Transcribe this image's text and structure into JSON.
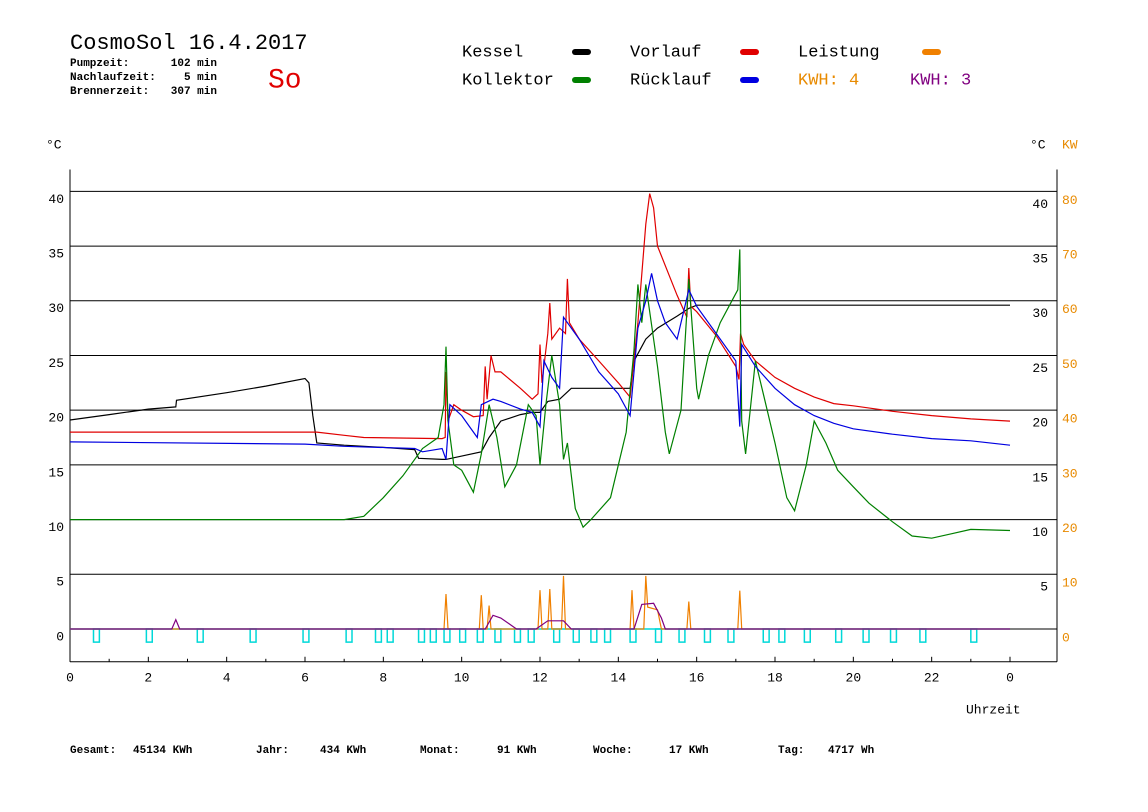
{
  "header": {
    "title": "CosmoSol 16.4.2017",
    "day": "So",
    "info": [
      {
        "label": "Pumpzeit:",
        "value": "102 min"
      },
      {
        "label": "Nachlaufzeit:",
        "value": "5 min"
      },
      {
        "label": "Brennerzeit:",
        "value": "307 min"
      }
    ]
  },
  "chart_data": {
    "type": "line",
    "x_label": "Uhrzeit",
    "y_label": "°C",
    "y_right_label": "°C",
    "y2_label": "KW",
    "xlim": [
      0,
      25.2
    ],
    "xticks": [
      0,
      2,
      4,
      6,
      8,
      10,
      12,
      14,
      16,
      18,
      20,
      22,
      {
        "value": 24,
        "label": "0"
      }
    ],
    "xminor_ticks": [
      1,
      3,
      5,
      7,
      9,
      11,
      13,
      15,
      17,
      19,
      21,
      23
    ],
    "ylim": [
      -3,
      42
    ],
    "yticks": [
      0,
      5,
      10,
      15,
      20,
      25,
      30,
      35,
      40
    ],
    "yticks_right": [
      5,
      10,
      15,
      20,
      25,
      30,
      35,
      40
    ],
    "y2lim": [
      -6,
      84
    ],
    "y2ticks": [
      0,
      10,
      20,
      30,
      40,
      50,
      60,
      70,
      80
    ],
    "y2_color": "#e88a00",
    "grid": true,
    "series": [
      {
        "name": "Kessel",
        "color": "#000000",
        "legend": "swatch",
        "x": [
          0,
          1,
          2,
          2.7,
          2.72,
          4,
          5,
          6,
          6.1,
          6.2,
          6.3,
          7,
          8,
          8.8,
          8.9,
          9.5,
          9.6,
          10,
          10.5,
          10.7,
          11,
          11.5,
          11.8,
          12,
          12.2,
          12.5,
          12.8,
          13.5,
          14.3,
          14.4,
          14.7,
          15,
          15.5,
          15.8,
          16,
          24
        ],
        "values": [
          19.1,
          19.6,
          20.1,
          20.3,
          20.9,
          21.6,
          22.2,
          22.9,
          22.5,
          19.5,
          17.0,
          16.8,
          16.6,
          16.4,
          15.6,
          15.5,
          15.5,
          15.8,
          16.2,
          17.5,
          19.0,
          19.6,
          19.8,
          19.8,
          20.8,
          21.0,
          22.0,
          22.0,
          22.0,
          24.5,
          26.5,
          27.5,
          28.6,
          29.3,
          29.6,
          29.6
        ]
      },
      {
        "name": "Vorlauf",
        "color": "#e00000",
        "legend": "swatch",
        "x": [
          0,
          6,
          6.3,
          7,
          7.5,
          9.5,
          9.58,
          9.6,
          9.65,
          9.8,
          10.0,
          10.3,
          10.55,
          10.6,
          10.65,
          10.75,
          10.85,
          11.0,
          11.5,
          11.8,
          11.95,
          12.0,
          12.05,
          12.2,
          12.25,
          12.3,
          12.5,
          12.65,
          12.7,
          12.75,
          13.0,
          13.5,
          14.0,
          14.3,
          14.5,
          14.7,
          14.8,
          14.9,
          15.0,
          15.5,
          15.75,
          15.8,
          15.85,
          16.0,
          16.5,
          17.0,
          17.08,
          17.12,
          17.2,
          17.5,
          18.0,
          18.5,
          19.0,
          19.5,
          20.0,
          21.0,
          22.0,
          23.0,
          24.0
        ],
        "values": [
          18.0,
          18.0,
          18.0,
          17.7,
          17.5,
          17.4,
          17.5,
          23.5,
          19.0,
          20.5,
          20.0,
          19.4,
          19.5,
          24.0,
          21.0,
          25.0,
          23.5,
          23.5,
          22.0,
          21.0,
          21.5,
          26.0,
          22.5,
          27.0,
          29.8,
          26.5,
          27.5,
          27.0,
          32.0,
          28.0,
          26.5,
          24.5,
          22.5,
          21.2,
          28.0,
          37.0,
          39.8,
          38.5,
          35.0,
          30.5,
          28.5,
          33.0,
          29.5,
          29.0,
          26.8,
          24.0,
          22.8,
          27.0,
          26.0,
          24.5,
          23.0,
          22.0,
          21.2,
          20.6,
          20.4,
          19.9,
          19.5,
          19.2,
          19.0
        ]
      },
      {
        "name": "Leistung",
        "color": "#f08000",
        "legend": "swatch",
        "axis": "y2",
        "x": [
          0,
          9.55,
          9.6,
          9.65,
          10.45,
          10.5,
          10.55,
          10.65,
          10.7,
          10.75,
          11.95,
          12.0,
          12.05,
          12.2,
          12.25,
          12.3,
          12.55,
          12.6,
          12.65,
          14.3,
          14.35,
          14.4,
          14.65,
          14.7,
          14.75,
          15.0,
          15.1,
          15.75,
          15.8,
          15.85,
          17.05,
          17.1,
          17.15,
          24
        ],
        "values": [
          0,
          0,
          6.4,
          0,
          0,
          6.2,
          0,
          0,
          4.3,
          0,
          0,
          7.1,
          0,
          0,
          7.3,
          0,
          0,
          9.7,
          0,
          0,
          7.1,
          0,
          0,
          9.7,
          4.0,
          3.5,
          0,
          0,
          5.0,
          0,
          0,
          7.0,
          0,
          0
        ]
      },
      {
        "name": "Kollektor",
        "color": "#008000",
        "legend": "swatch",
        "x": [
          0,
          7.0,
          7.5,
          8.0,
          8.5,
          9.0,
          9.4,
          9.55,
          9.6,
          9.65,
          9.8,
          10.0,
          10.3,
          10.5,
          10.7,
          10.9,
          11.1,
          11.4,
          11.7,
          11.9,
          12.0,
          12.15,
          12.3,
          12.5,
          12.6,
          12.7,
          12.9,
          13.1,
          13.3,
          13.8,
          14.2,
          14.4,
          14.5,
          14.6,
          14.7,
          14.8,
          15.0,
          15.2,
          15.3,
          15.6,
          15.8,
          16.0,
          16.05,
          16.3,
          16.6,
          16.9,
          17.05,
          17.1,
          17.15,
          17.25,
          17.5,
          17.7,
          18.0,
          18.3,
          18.5,
          18.8,
          19.0,
          19.3,
          19.6,
          20.0,
          20.4,
          21.0,
          21.5,
          22.0,
          22.5,
          23.0,
          24.0
        ],
        "values": [
          10.0,
          10.0,
          10.3,
          12.0,
          14.0,
          16.5,
          17.5,
          20.5,
          25.8,
          19.0,
          15.0,
          14.5,
          12.5,
          16.0,
          20.5,
          17.5,
          13.0,
          15.0,
          20.5,
          19.5,
          15.0,
          20.5,
          25.0,
          20.5,
          15.5,
          17.0,
          11.0,
          9.3,
          10.0,
          12.0,
          18.0,
          25.5,
          31.5,
          28.0,
          31.5,
          29.0,
          24.0,
          18.0,
          16.0,
          20.0,
          32.0,
          22.0,
          21.0,
          25.0,
          28.0,
          30.0,
          31.0,
          34.7,
          19.0,
          16.0,
          24.5,
          21.5,
          17.0,
          12.0,
          10.8,
          15.0,
          19.0,
          17.0,
          14.5,
          13.0,
          11.5,
          9.8,
          8.5,
          8.3,
          8.7,
          9.1,
          9.0
        ]
      },
      {
        "name": "Rücklauf",
        "color": "#0000e0",
        "legend": "swatch",
        "x": [
          0,
          6,
          7,
          8.8,
          9.0,
          9.5,
          9.6,
          9.7,
          10.0,
          10.2,
          10.4,
          10.5,
          10.8,
          11.0,
          11.5,
          11.8,
          12.0,
          12.1,
          12.3,
          12.5,
          12.6,
          13.0,
          13.5,
          14.0,
          14.3,
          14.5,
          14.7,
          14.85,
          15.0,
          15.2,
          15.5,
          15.8,
          16.0,
          16.5,
          17.0,
          17.1,
          17.15,
          17.5,
          18.0,
          18.5,
          19.0,
          19.5,
          20.0,
          21.0,
          22.0,
          23.0,
          24.0
        ],
        "values": [
          17.1,
          16.9,
          16.7,
          16.5,
          16.2,
          16.5,
          15.5,
          20.5,
          19.5,
          18.5,
          17.5,
          20.5,
          21.0,
          20.8,
          20.1,
          19.8,
          18.5,
          24.5,
          23.0,
          22.0,
          28.5,
          26.5,
          23.5,
          21.5,
          19.5,
          27.5,
          30.0,
          32.5,
          30.0,
          28.0,
          26.5,
          31.0,
          29.5,
          27.0,
          24.5,
          18.5,
          26.0,
          24.0,
          22.0,
          20.5,
          19.5,
          18.8,
          18.3,
          17.8,
          17.4,
          17.2,
          16.8
        ]
      },
      {
        "name": "KWH: 3",
        "color": "#800080",
        "legend": "text",
        "axis": "y2",
        "x": [
          0,
          2.6,
          2.7,
          2.8,
          10.6,
          10.8,
          11.0,
          11.2,
          11.4,
          11.9,
          12.2,
          12.6,
          12.8,
          14.4,
          14.6,
          14.9,
          15.1,
          15.2,
          24
        ],
        "values": [
          0,
          0,
          1.7,
          0,
          0,
          2.5,
          2.0,
          1.0,
          0,
          0,
          1.5,
          1.5,
          0,
          0,
          4.5,
          4.7,
          2.0,
          0,
          0
        ]
      }
    ],
    "extra_legend": [
      {
        "text": "KWH: 4",
        "color": "#e88a00"
      }
    ],
    "pump": {
      "color": "#00d8d8",
      "low": -1.2,
      "width": 0.15,
      "starts": [
        0.6,
        1.95,
        3.25,
        4.6,
        5.95,
        7.05,
        7.8,
        8.1,
        8.9,
        9.2,
        9.55,
        9.95,
        10.4,
        10.85,
        11.35,
        11.7,
        12.35,
        12.85,
        13.3,
        13.65,
        14.3,
        14.95,
        15.55,
        16.2,
        16.8,
        17.7,
        18.1,
        18.75,
        19.55,
        20.25,
        20.95,
        21.7,
        23.0
      ]
    }
  },
  "footer": [
    {
      "label": "Gesamt:",
      "value": "45134 KWh"
    },
    {
      "label": "Jahr:",
      "value": "434 KWh"
    },
    {
      "label": "Monat:",
      "value": "91 KWh"
    },
    {
      "label": "Woche:",
      "value": "17 KWh"
    },
    {
      "label": "Tag:",
      "value": "4717 Wh"
    }
  ]
}
